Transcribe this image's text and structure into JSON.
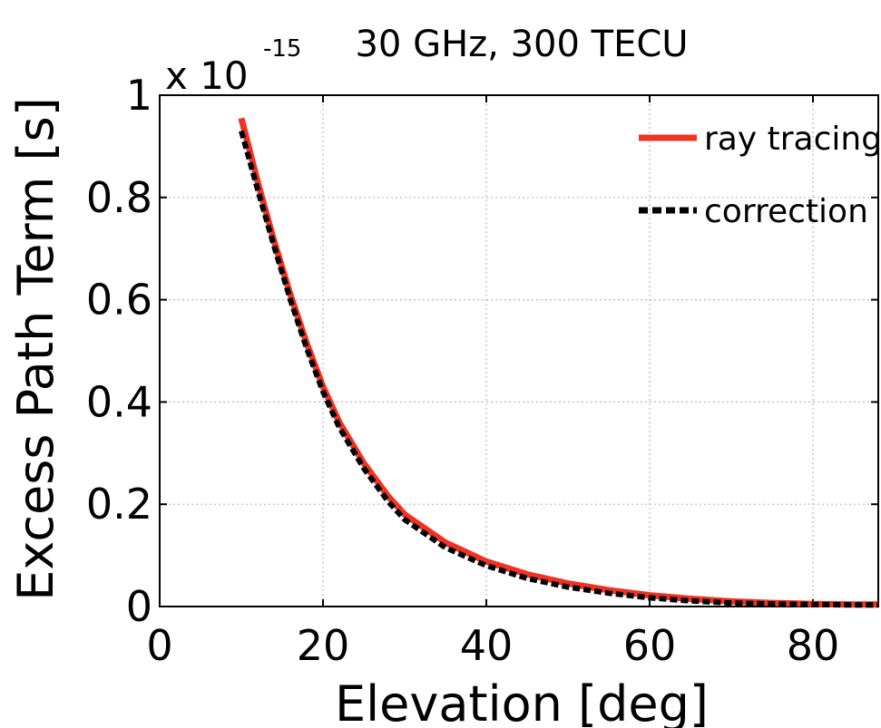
{
  "chart_data": {
    "type": "line",
    "title": "30 GHz, 300 TECU",
    "xlabel": "Elevation [deg]",
    "ylabel": "Excess Path Term [s]",
    "y_multiplier": "x 10",
    "y_multiplier_exponent": "-15",
    "xlim": [
      0,
      88
    ],
    "ylim": [
      0,
      1
    ],
    "xticks": [
      0,
      20,
      40,
      60,
      80
    ],
    "xtick_labels": [
      "0",
      "20",
      "40",
      "60",
      "80"
    ],
    "yticks": [
      0,
      0.2,
      0.4,
      0.6,
      0.8,
      1
    ],
    "ytick_labels": [
      "0",
      "0.2",
      "0.4",
      "0.6",
      "0.8",
      "1"
    ],
    "grid": true,
    "legend_position": "top-right",
    "series": [
      {
        "name": "ray tracing",
        "color": "#ee3322",
        "style": "solid",
        "x": [
          10,
          12,
          14,
          16,
          18,
          20,
          22,
          25,
          28,
          30,
          35,
          40,
          45,
          50,
          55,
          60,
          65,
          70,
          75,
          80,
          85,
          88
        ],
        "y": [
          0.955,
          0.83,
          0.715,
          0.61,
          0.515,
          0.43,
          0.36,
          0.28,
          0.215,
          0.18,
          0.125,
          0.088,
          0.063,
          0.045,
          0.032,
          0.022,
          0.015,
          0.01,
          0.007,
          0.005,
          0.004,
          0.004
        ]
      },
      {
        "name": "correction",
        "color": "#000000",
        "style": "dashed",
        "x": [
          10,
          12,
          14,
          16,
          18,
          20,
          22,
          25,
          28,
          30,
          35,
          40,
          45,
          50,
          55,
          60,
          65,
          70,
          75,
          80,
          85,
          88
        ],
        "y": [
          0.93,
          0.815,
          0.705,
          0.6,
          0.505,
          0.42,
          0.35,
          0.27,
          0.205,
          0.17,
          0.115,
          0.08,
          0.055,
          0.038,
          0.026,
          0.017,
          0.011,
          0.007,
          0.005,
          0.004,
          0.003,
          0.003
        ]
      }
    ]
  }
}
